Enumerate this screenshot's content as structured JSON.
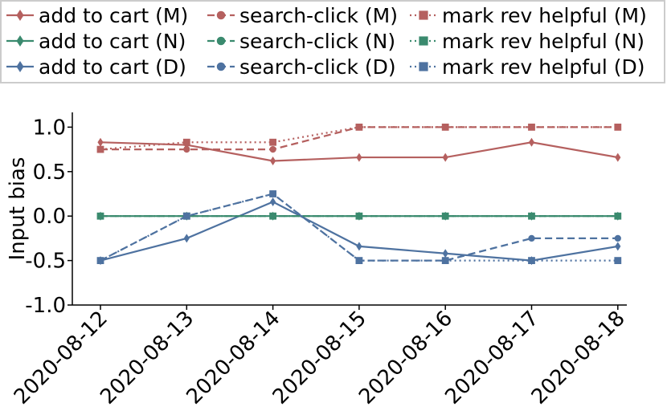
{
  "chart_data": {
    "type": "line",
    "ylabel": "Input bias",
    "xlabel": "",
    "ylim": [
      -1.0,
      1.0
    ],
    "yticks": [
      "1.0",
      "0.5",
      "0.0",
      "-0.5",
      "-1.0"
    ],
    "ytick_values": [
      1.0,
      0.5,
      0.0,
      -0.5,
      -1.0
    ],
    "categories": [
      "2020-08-12",
      "2020-08-13",
      "2020-08-14",
      "2020-08-15",
      "2020-08-16",
      "2020-08-17",
      "2020-08-18"
    ],
    "grid": false,
    "legend_position": "top",
    "series": [
      {
        "name": "add to cart (M)",
        "color": "#b5605f",
        "marker": "diamond",
        "dash": "solid",
        "values": [
          0.83,
          0.8,
          0.62,
          0.66,
          0.66,
          0.83,
          0.66
        ]
      },
      {
        "name": "add to cart (N)",
        "color": "#3a8a6e",
        "marker": "diamond",
        "dash": "solid",
        "values": [
          0.0,
          0.0,
          0.0,
          0.0,
          0.0,
          0.0,
          0.0
        ]
      },
      {
        "name": "add to cart (D)",
        "color": "#4e72a0",
        "marker": "diamond",
        "dash": "solid",
        "values": [
          -0.5,
          -0.25,
          0.16,
          -0.34,
          -0.42,
          -0.5,
          -0.34
        ]
      },
      {
        "name": "search-click (M)",
        "color": "#b5605f",
        "marker": "circle",
        "dash": "dashed",
        "values": [
          0.75,
          0.75,
          0.75,
          1.0,
          1.0,
          1.0,
          1.0
        ]
      },
      {
        "name": "search-click (N)",
        "color": "#3a8a6e",
        "marker": "circle",
        "dash": "dashed",
        "values": [
          0.0,
          0.0,
          0.0,
          0.0,
          0.0,
          0.0,
          0.0
        ]
      },
      {
        "name": "search-click (D)",
        "color": "#4e72a0",
        "marker": "circle",
        "dash": "dashed",
        "values": [
          -0.5,
          0.0,
          0.25,
          -0.5,
          -0.5,
          -0.25,
          -0.25
        ]
      },
      {
        "name": "mark rev helpful (M)",
        "color": "#b5605f",
        "marker": "square",
        "dash": "dotted",
        "values": [
          0.75,
          0.83,
          0.83,
          1.0,
          1.0,
          1.0,
          1.0
        ]
      },
      {
        "name": "mark rev helpful (N)",
        "color": "#3a8a6e",
        "marker": "square",
        "dash": "dotted",
        "values": [
          0.0,
          0.0,
          0.0,
          0.0,
          0.0,
          0.0,
          0.0
        ]
      },
      {
        "name": "mark rev helpful (D)",
        "color": "#4e72a0",
        "marker": "square",
        "dash": "dotted",
        "values": [
          -0.5,
          0.0,
          0.25,
          -0.5,
          -0.5,
          -0.5,
          -0.5
        ]
      }
    ]
  }
}
